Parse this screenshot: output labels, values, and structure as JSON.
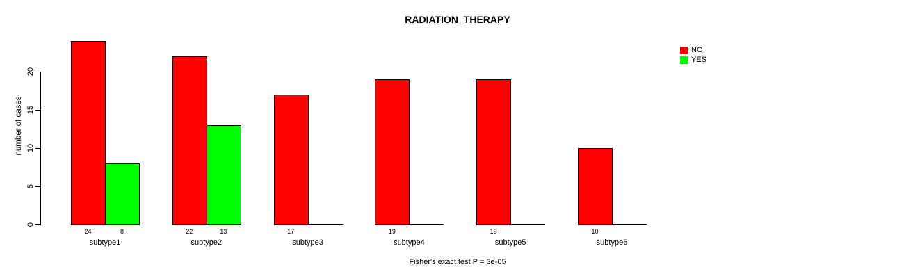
{
  "title": "RADIATION_THERAPY",
  "footer": "Fisher's exact test P = 3e-05",
  "y_axis": {
    "label": "number of cases",
    "ticks": [
      0,
      5,
      10,
      15,
      20
    ]
  },
  "legend": {
    "items": [
      {
        "label": "NO",
        "color": "#ff0000"
      },
      {
        "label": "YES",
        "color": "#00ff00"
      }
    ]
  },
  "colors": {
    "no": "#ff0000",
    "yes": "#00ff00",
    "axis": "#000000",
    "background": "#ffffff"
  },
  "chart_data": {
    "type": "bar",
    "title": "RADIATION_THERAPY",
    "xlabel": "",
    "ylabel": "number of cases",
    "categories": [
      "subtype1",
      "subtype2",
      "subtype3",
      "subtype4",
      "subtype5",
      "subtype6"
    ],
    "series": [
      {
        "name": "NO",
        "color": "#ff0000",
        "values": [
          24,
          22,
          17,
          19,
          19,
          10
        ]
      },
      {
        "name": "YES",
        "color": "#00ff00",
        "values": [
          8,
          13,
          0,
          0,
          0,
          0
        ]
      }
    ],
    "bar_value_labels": [
      [
        "24",
        "8"
      ],
      [
        "22",
        "13"
      ],
      [
        "17",
        ""
      ],
      [
        "19",
        ""
      ],
      [
        "19",
        ""
      ],
      [
        "10",
        ""
      ]
    ],
    "yticks": [
      0,
      5,
      10,
      15,
      20
    ],
    "ylim": [
      0,
      24
    ],
    "grid": false,
    "legend_position": "top-right",
    "legend_entries": [
      "NO",
      "YES"
    ],
    "annotation": "Fisher's exact test P = 3e-05"
  }
}
